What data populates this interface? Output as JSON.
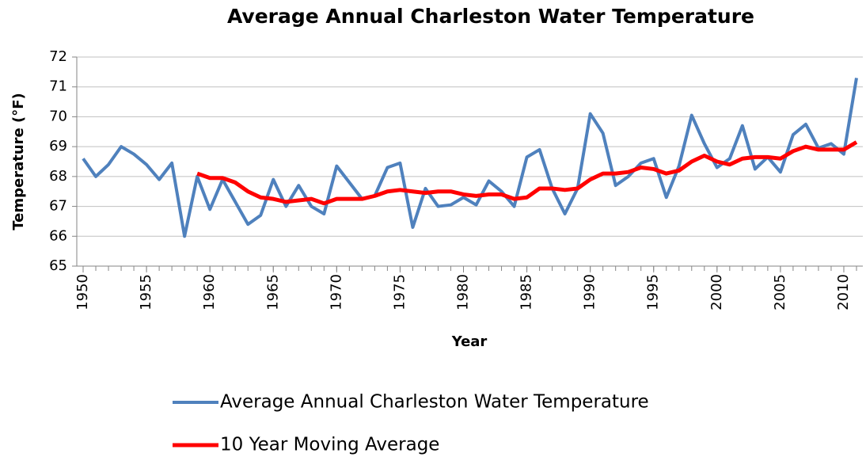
{
  "chart_data": {
    "type": "line",
    "title": "Average Annual Charleston Water Temperature",
    "x_label": "Year",
    "y_label": "Temperature (°F)",
    "x": [
      1950,
      1951,
      1952,
      1953,
      1954,
      1955,
      1956,
      1957,
      1958,
      1959,
      1960,
      1961,
      1962,
      1963,
      1964,
      1965,
      1966,
      1967,
      1968,
      1969,
      1970,
      1971,
      1972,
      1973,
      1974,
      1975,
      1976,
      1977,
      1978,
      1979,
      1980,
      1981,
      1982,
      1983,
      1984,
      1985,
      1986,
      1987,
      1988,
      1989,
      1990,
      1991,
      1992,
      1993,
      1994,
      1995,
      1996,
      1997,
      1998,
      1999,
      2000,
      2001,
      2002,
      2003,
      2004,
      2005,
      2006,
      2007,
      2008,
      2009,
      2010,
      2011
    ],
    "series": [
      {
        "name": "Average Annual Charleston Water Temperature",
        "color": "#4f81bd",
        "values": [
          68.6,
          68.0,
          68.4,
          69.0,
          68.75,
          68.4,
          67.9,
          68.45,
          66.0,
          68.0,
          66.9,
          67.9,
          67.15,
          66.4,
          66.7,
          67.9,
          67.0,
          67.7,
          67.0,
          66.75,
          68.35,
          67.8,
          67.25,
          67.35,
          68.3,
          68.45,
          66.3,
          67.6,
          67.0,
          67.05,
          67.3,
          67.05,
          67.85,
          67.5,
          67.0,
          68.65,
          68.9,
          67.6,
          66.75,
          67.6,
          70.1,
          69.45,
          67.7,
          68.0,
          68.45,
          68.6,
          67.3,
          68.35,
          70.05,
          69.1,
          68.3,
          68.6,
          69.7,
          68.25,
          68.65,
          68.15,
          69.4,
          69.75,
          68.95,
          69.1,
          68.75,
          71.3
        ]
      },
      {
        "name": "10 Year Moving Average",
        "color": "#ff0000",
        "values": [
          null,
          null,
          null,
          null,
          null,
          null,
          null,
          null,
          null,
          68.1,
          67.95,
          67.95,
          67.8,
          67.5,
          67.3,
          67.25,
          67.15,
          67.2,
          67.25,
          67.1,
          67.25,
          67.25,
          67.25,
          67.35,
          67.5,
          67.55,
          67.5,
          67.45,
          67.5,
          67.5,
          67.4,
          67.35,
          67.4,
          67.4,
          67.25,
          67.3,
          67.6,
          67.6,
          67.55,
          67.6,
          67.9,
          68.1,
          68.1,
          68.15,
          68.3,
          68.25,
          68.1,
          68.2,
          68.5,
          68.7,
          68.5,
          68.4,
          68.6,
          68.65,
          68.65,
          68.6,
          68.85,
          69.0,
          68.9,
          68.9,
          68.9,
          69.15
        ]
      }
    ],
    "xlim": [
      1949.5,
      2011.5
    ],
    "xticks": [
      1950,
      1955,
      1960,
      1965,
      1970,
      1975,
      1980,
      1985,
      1990,
      1995,
      2000,
      2005,
      2010
    ],
    "ylim": [
      65,
      72
    ],
    "yticks": [
      65,
      66,
      67,
      68,
      69,
      70,
      71,
      72
    ],
    "grid": true,
    "legend": "bottom"
  }
}
